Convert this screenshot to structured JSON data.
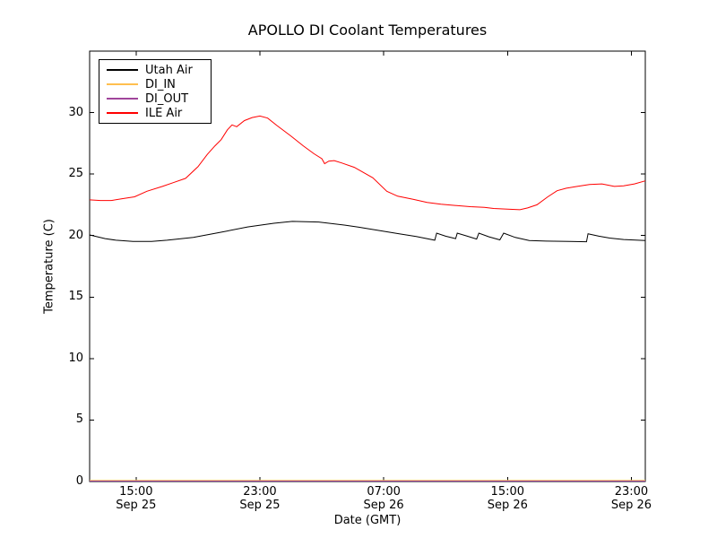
{
  "chart_data": {
    "type": "line",
    "title": "APOLLO DI Coolant Temperatures",
    "xlabel": "Date (GMT)",
    "ylabel": "Temperature (C)",
    "grid": false,
    "legend_position": "upper left",
    "background_color": "#ffffff",
    "frame_color": "#000000",
    "ylim": [
      0,
      35
    ],
    "y_ticks": [
      {
        "value": 0,
        "label": "0"
      },
      {
        "value": 5,
        "label": "5"
      },
      {
        "value": 10,
        "label": "10"
      },
      {
        "value": 15,
        "label": "15"
      },
      {
        "value": 20,
        "label": "20"
      },
      {
        "value": 25,
        "label": "25"
      },
      {
        "value": 30,
        "label": "30"
      }
    ],
    "x_axis_origin": "Sep 25 12:00 GMT",
    "xlim_hours": [
      0,
      35.9
    ],
    "x_ticks": [
      {
        "hour": 3,
        "time": "15:00",
        "date": "Sep 25"
      },
      {
        "hour": 11,
        "time": "23:00",
        "date": "Sep 25"
      },
      {
        "hour": 19,
        "time": "07:00",
        "date": "Sep 26"
      },
      {
        "hour": 27,
        "time": "15:00",
        "date": "Sep 26"
      },
      {
        "hour": 35,
        "time": "23:00",
        "date": "Sep 26"
      }
    ],
    "series": [
      {
        "name": "Utah Air",
        "color": "#000000",
        "points": [
          [
            0,
            20.05
          ],
          [
            1,
            19.75
          ],
          [
            1.7,
            19.62
          ],
          [
            2.8,
            19.52
          ],
          [
            4,
            19.53
          ],
          [
            5,
            19.62
          ],
          [
            6.7,
            19.85
          ],
          [
            8.4,
            20.25
          ],
          [
            10.2,
            20.7
          ],
          [
            11.9,
            21.0
          ],
          [
            13.1,
            21.15
          ],
          [
            14.8,
            21.1
          ],
          [
            16.5,
            20.85
          ],
          [
            17.4,
            20.68
          ],
          [
            18.5,
            20.45
          ],
          [
            20,
            20.15
          ],
          [
            21.1,
            19.92
          ],
          [
            22.3,
            19.62
          ],
          [
            22.42,
            20.2
          ],
          [
            23.0,
            19.95
          ],
          [
            23.65,
            19.75
          ],
          [
            23.75,
            20.2
          ],
          [
            24.4,
            19.95
          ],
          [
            25.0,
            19.72
          ],
          [
            25.15,
            20.2
          ],
          [
            25.8,
            19.9
          ],
          [
            26.5,
            19.65
          ],
          [
            26.75,
            20.2
          ],
          [
            27.5,
            19.85
          ],
          [
            28.4,
            19.6
          ],
          [
            29.5,
            19.55
          ],
          [
            31,
            19.52
          ],
          [
            32.1,
            19.5
          ],
          [
            32.2,
            20.15
          ],
          [
            32.9,
            19.95
          ],
          [
            33.6,
            19.8
          ],
          [
            34.5,
            19.68
          ],
          [
            35.9,
            19.6
          ]
        ]
      },
      {
        "name": "DI_IN",
        "color": "#ffbf4f",
        "points": [
          [
            0,
            0
          ],
          [
            35.9,
            0
          ]
        ]
      },
      {
        "name": "DI_OUT",
        "color": "#a0459b",
        "points": [
          [
            0,
            0
          ],
          [
            35.9,
            0
          ]
        ]
      },
      {
        "name": "ILE Air",
        "color": "#ff0000",
        "points": [
          [
            0,
            22.9
          ],
          [
            0.7,
            22.85
          ],
          [
            1.4,
            22.85
          ],
          [
            2.1,
            23.0
          ],
          [
            2.9,
            23.15
          ],
          [
            3.7,
            23.6
          ],
          [
            4.7,
            24.0
          ],
          [
            5.4,
            24.3
          ],
          [
            6.2,
            24.65
          ],
          [
            7.0,
            25.6
          ],
          [
            7.6,
            26.6
          ],
          [
            8.1,
            27.3
          ],
          [
            8.5,
            27.8
          ],
          [
            8.9,
            28.6
          ],
          [
            9.2,
            29.0
          ],
          [
            9.5,
            28.85
          ],
          [
            10.0,
            29.35
          ],
          [
            10.5,
            29.6
          ],
          [
            11.0,
            29.72
          ],
          [
            11.5,
            29.55
          ],
          [
            12.1,
            28.95
          ],
          [
            13.0,
            28.1
          ],
          [
            13.8,
            27.3
          ],
          [
            14.5,
            26.65
          ],
          [
            15.0,
            26.25
          ],
          [
            15.18,
            25.85
          ],
          [
            15.45,
            26.05
          ],
          [
            15.8,
            26.1
          ],
          [
            16.3,
            25.9
          ],
          [
            17.1,
            25.55
          ],
          [
            18.3,
            24.7
          ],
          [
            19.2,
            23.6
          ],
          [
            19.9,
            23.2
          ],
          [
            20.9,
            22.95
          ],
          [
            21.8,
            22.7
          ],
          [
            22.7,
            22.55
          ],
          [
            23.6,
            22.45
          ],
          [
            24.6,
            22.35
          ],
          [
            25.5,
            22.3
          ],
          [
            26.1,
            22.2
          ],
          [
            27.0,
            22.15
          ],
          [
            27.8,
            22.1
          ],
          [
            28.3,
            22.25
          ],
          [
            28.9,
            22.5
          ],
          [
            29.6,
            23.15
          ],
          [
            30.2,
            23.65
          ],
          [
            30.8,
            23.85
          ],
          [
            31.5,
            24.0
          ],
          [
            32.3,
            24.15
          ],
          [
            33.1,
            24.2
          ],
          [
            33.9,
            24.0
          ],
          [
            34.5,
            24.05
          ],
          [
            35.2,
            24.2
          ],
          [
            35.9,
            24.45
          ]
        ]
      }
    ]
  }
}
